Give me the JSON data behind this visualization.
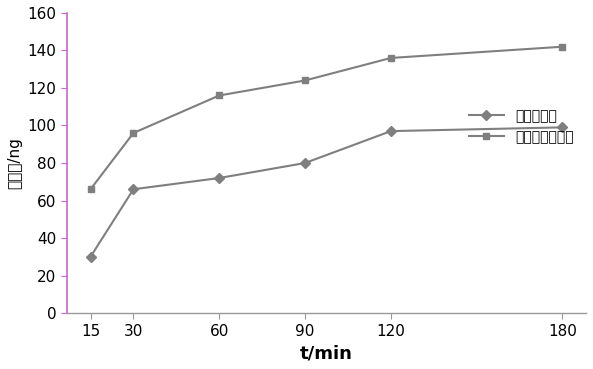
{
  "x": [
    15,
    30,
    60,
    90,
    120,
    180
  ],
  "y_hericium": [
    30,
    66,
    72,
    80,
    97,
    99
  ],
  "y_nano_hericium": [
    66,
    96,
    116,
    124,
    136,
    142
  ],
  "legend_labels": [
    "猴头菇多糖",
    "纳米猴头菇多糖"
  ],
  "xlabel": "t/min",
  "ylabel": "转运量/ng",
  "ylim": [
    0,
    160
  ],
  "yticks": [
    0,
    20,
    40,
    60,
    80,
    100,
    120,
    140,
    160
  ],
  "xticks": [
    15,
    30,
    60,
    90,
    120,
    180
  ],
  "line_color": "#7f7f7f",
  "marker_diamond": "D",
  "marker_square": "s",
  "marker_size": 5,
  "linewidth": 1.5,
  "xlabel_fontsize": 13,
  "ylabel_fontsize": 11,
  "tick_fontsize": 11,
  "legend_fontsize": 10,
  "background_color": "#ffffff",
  "left_spine_color": "#cc66cc",
  "bottom_spine_color": "#999999"
}
